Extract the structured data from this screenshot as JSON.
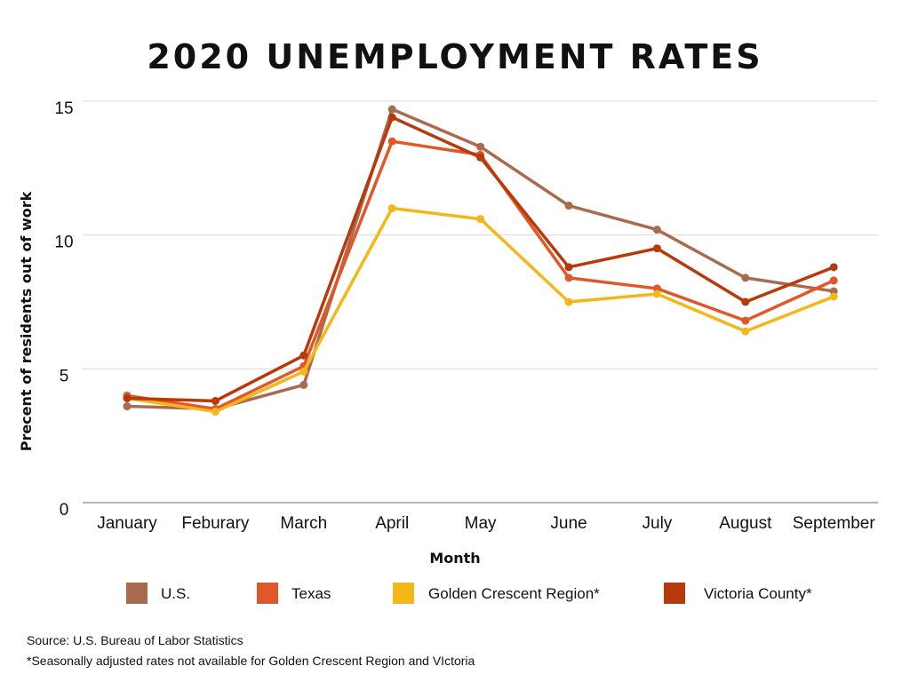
{
  "chart_data": {
    "type": "line",
    "title": "2020 UNEMPLOYMENT RATES",
    "xlabel": "Month",
    "ylabel": "Precent of residents out of work",
    "categories": [
      "January",
      "Feburary",
      "March",
      "April",
      "May",
      "June",
      "July",
      "August",
      "September"
    ],
    "ylim": [
      0,
      15
    ],
    "yticks": [
      0,
      5,
      10,
      15
    ],
    "grid": true,
    "legend_position": "bottom",
    "series": [
      {
        "name": "U.S.",
        "color": "#a86b4e",
        "values": [
          3.6,
          3.5,
          4.4,
          14.7,
          13.3,
          11.1,
          10.2,
          8.4,
          7.9
        ]
      },
      {
        "name": "Texas",
        "color": "#e0582a",
        "values": [
          4.0,
          3.5,
          5.1,
          13.5,
          13.0,
          8.4,
          8.0,
          6.8,
          8.3
        ]
      },
      {
        "name": "Golden Crescent Region*",
        "color": "#f4b71a",
        "values": [
          3.9,
          3.4,
          4.9,
          11.0,
          10.6,
          7.5,
          7.8,
          6.4,
          7.7
        ]
      },
      {
        "name": "Victoria County*",
        "color": "#b83a0a",
        "values": [
          3.9,
          3.8,
          5.5,
          14.4,
          12.9,
          8.8,
          9.5,
          7.5,
          8.8
        ]
      }
    ]
  },
  "footnotes": {
    "source": "Source: U.S. Bureau of Labor Statistics",
    "adjustment": "*Seasonally adjusted rates not available for Golden Crescent Region and VIctoria"
  }
}
